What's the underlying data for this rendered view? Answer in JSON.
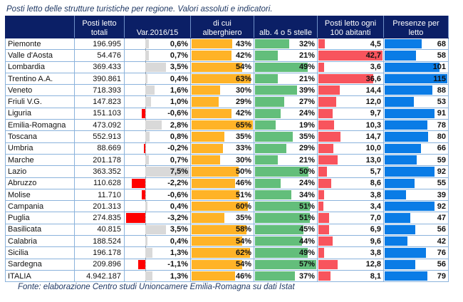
{
  "title": "Posti letto delle strutture turistiche per regione. Valori assoluti e indicatori.",
  "source": "Fonte: elaborazione Centro studi Unioncamere Emilia-Romagna su dati Istat",
  "headers": {
    "region": "",
    "posti_letto": "Posti letto totali",
    "var": "Var.2016/15",
    "alberghiero": "di cui alberghiero",
    "stelle": "alb. 4 o 5 stelle",
    "ogni100": "Posti letto ogni 100 abitanti",
    "presenze": "Presenze per letto"
  },
  "colors": {
    "header_bg": "#0b1f66",
    "var_positive": "#d9d9d9",
    "var_negative": "#ff0000",
    "alberghiero": "#ffb327",
    "stelle": "#63be7b",
    "ogni100": "#f8545d",
    "presenze": "#0a7ce6"
  },
  "chart_data": {
    "type": "table",
    "title": "Posti letto delle strutture turistiche per regione. Valori assoluti e indicatori.",
    "columns": [
      "Regione",
      "Posti letto totali",
      "Var.2016/15",
      "di cui alberghiero",
      "alb. 4 o 5 stelle",
      "Posti letto ogni 100 abitanti",
      "Presenze per letto"
    ],
    "rows": [
      {
        "region": "Piemonte",
        "posti": "196.995",
        "var": "0,6%",
        "var_v": 0.6,
        "alb": "43%",
        "alb_v": 43,
        "stelle": "32%",
        "stelle_v": 32,
        "ogni100": "4,5",
        "ogni100_v": 4.5,
        "pres": "68",
        "pres_v": 68
      },
      {
        "region": "Valle d'Aosta",
        "posti": "54.476",
        "var": "0,7%",
        "var_v": 0.7,
        "alb": "42%",
        "alb_v": 42,
        "stelle": "21%",
        "stelle_v": 21,
        "ogni100": "42,7",
        "ogni100_v": 42.7,
        "pres": "58",
        "pres_v": 58
      },
      {
        "region": "Lombardia",
        "posti": "369.433",
        "var": "3,5%",
        "var_v": 3.5,
        "alb": "54%",
        "alb_v": 54,
        "stelle": "49%",
        "stelle_v": 49,
        "ogni100": "3,6",
        "ogni100_v": 3.6,
        "pres": "101",
        "pres_v": 101
      },
      {
        "region": "Trentino A.A.",
        "posti": "390.861",
        "var": "0,4%",
        "var_v": 0.4,
        "alb": "63%",
        "alb_v": 63,
        "stelle": "21%",
        "stelle_v": 21,
        "ogni100": "36,6",
        "ogni100_v": 36.6,
        "pres": "115",
        "pres_v": 115
      },
      {
        "region": "Veneto",
        "posti": "718.393",
        "var": "1,6%",
        "var_v": 1.6,
        "alb": "30%",
        "alb_v": 30,
        "stelle": "39%",
        "stelle_v": 39,
        "ogni100": "14,4",
        "ogni100_v": 14.4,
        "pres": "88",
        "pres_v": 88
      },
      {
        "region": "Friuli V.G.",
        "posti": "147.823",
        "var": "1,0%",
        "var_v": 1.0,
        "alb": "29%",
        "alb_v": 29,
        "stelle": "27%",
        "stelle_v": 27,
        "ogni100": "12,0",
        "ogni100_v": 12.0,
        "pres": "53",
        "pres_v": 53
      },
      {
        "region": "Liguria",
        "posti": "151.103",
        "var": "-0,6%",
        "var_v": -0.6,
        "alb": "42%",
        "alb_v": 42,
        "stelle": "24%",
        "stelle_v": 24,
        "ogni100": "9,7",
        "ogni100_v": 9.7,
        "pres": "91",
        "pres_v": 91
      },
      {
        "region": "Emilia-Romagna",
        "posti": "473.092",
        "var": "2,8%",
        "var_v": 2.8,
        "alb": "65%",
        "alb_v": 65,
        "stelle": "19%",
        "stelle_v": 19,
        "ogni100": "10,3",
        "ogni100_v": 10.3,
        "pres": "78",
        "pres_v": 78
      },
      {
        "region": "Toscana",
        "posti": "552.913",
        "var": "0,8%",
        "var_v": 0.8,
        "alb": "35%",
        "alb_v": 35,
        "stelle": "35%",
        "stelle_v": 35,
        "ogni100": "14,7",
        "ogni100_v": 14.7,
        "pres": "80",
        "pres_v": 80
      },
      {
        "region": "Umbria",
        "posti": "88.669",
        "var": "-0,2%",
        "var_v": -0.2,
        "alb": "33%",
        "alb_v": 33,
        "stelle": "29%",
        "stelle_v": 29,
        "ogni100": "10,0",
        "ogni100_v": 10.0,
        "pres": "66",
        "pres_v": 66
      },
      {
        "region": "Marche",
        "posti": "201.178",
        "var": "0,7%",
        "var_v": 0.7,
        "alb": "30%",
        "alb_v": 30,
        "stelle": "21%",
        "stelle_v": 21,
        "ogni100": "13,0",
        "ogni100_v": 13.0,
        "pres": "59",
        "pres_v": 59
      },
      {
        "region": "Lazio",
        "posti": "363.352",
        "var": "7,5%",
        "var_v": 7.5,
        "alb": "50%",
        "alb_v": 50,
        "stelle": "50%",
        "stelle_v": 50,
        "ogni100": "5,7",
        "ogni100_v": 5.7,
        "pres": "92",
        "pres_v": 92
      },
      {
        "region": "Abruzzo",
        "posti": "110.628",
        "var": "-2,2%",
        "var_v": -2.2,
        "alb": "46%",
        "alb_v": 46,
        "stelle": "24%",
        "stelle_v": 24,
        "ogni100": "8,6",
        "ogni100_v": 8.6,
        "pres": "55",
        "pres_v": 55
      },
      {
        "region": "Molise",
        "posti": "11.710",
        "var": "-0,6%",
        "var_v": -0.6,
        "alb": "51%",
        "alb_v": 51,
        "stelle": "34%",
        "stelle_v": 34,
        "ogni100": "3,8",
        "ogni100_v": 3.8,
        "pres": "39",
        "pres_v": 39
      },
      {
        "region": "Campania",
        "posti": "201.313",
        "var": "0,4%",
        "var_v": 0.4,
        "alb": "60%",
        "alb_v": 60,
        "stelle": "51%",
        "stelle_v": 51,
        "ogni100": "3,4",
        "ogni100_v": 3.4,
        "pres": "92",
        "pres_v": 92
      },
      {
        "region": "Puglia",
        "posti": "274.835",
        "var": "-3,2%",
        "var_v": -3.2,
        "alb": "35%",
        "alb_v": 35,
        "stelle": "51%",
        "stelle_v": 51,
        "ogni100": "7,0",
        "ogni100_v": 7.0,
        "pres": "47",
        "pres_v": 47
      },
      {
        "region": "Basilicata",
        "posti": "40.815",
        "var": "3,5%",
        "var_v": 3.5,
        "alb": "58%",
        "alb_v": 58,
        "stelle": "45%",
        "stelle_v": 45,
        "ogni100": "6,9",
        "ogni100_v": 6.9,
        "pres": "56",
        "pres_v": 56
      },
      {
        "region": "Calabria",
        "posti": "188.524",
        "var": "0,4%",
        "var_v": 0.4,
        "alb": "54%",
        "alb_v": 54,
        "stelle": "44%",
        "stelle_v": 44,
        "ogni100": "9,6",
        "ogni100_v": 9.6,
        "pres": "42",
        "pres_v": 42
      },
      {
        "region": "Sicilia",
        "posti": "196.178",
        "var": "1,3%",
        "var_v": 1.3,
        "alb": "62%",
        "alb_v": 62,
        "stelle": "49%",
        "stelle_v": 49,
        "ogni100": "3,8",
        "ogni100_v": 3.8,
        "pres": "76",
        "pres_v": 76
      },
      {
        "region": "Sardegna",
        "posti": "209.896",
        "var": "-1,1%",
        "var_v": -1.1,
        "alb": "54%",
        "alb_v": 54,
        "stelle": "57%",
        "stelle_v": 57,
        "ogni100": "12,8",
        "ogni100_v": 12.8,
        "pres": "56",
        "pres_v": 56
      },
      {
        "region": "ITALIA",
        "posti": "4.942.187",
        "var": "1,3%",
        "var_v": 1.3,
        "alb": "46%",
        "alb_v": 46,
        "stelle": "37%",
        "stelle_v": 37,
        "ogni100": "8,1",
        "ogni100_v": 8.1,
        "pres": "79",
        "pres_v": 79
      }
    ],
    "scales": {
      "var": [
        -3.2,
        7.5
      ],
      "alb": [
        0,
        65
      ],
      "stelle": [
        0,
        57
      ],
      "ogni100": [
        0,
        42.7
      ],
      "presenze": [
        0,
        115
      ]
    }
  }
}
